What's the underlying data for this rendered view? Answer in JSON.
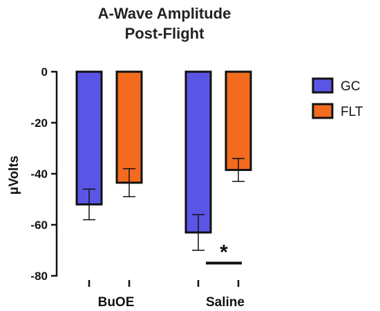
{
  "chart_data": {
    "type": "bar",
    "title": [
      "A-Wave Amplitude",
      "Post-Flight"
    ],
    "ylabel": "μVolts",
    "xlabel": "",
    "categories": [
      "BuOE",
      "Saline"
    ],
    "ylim": [
      -80,
      0
    ],
    "yticks": [
      0,
      -20,
      -40,
      -60,
      -80
    ],
    "series": [
      {
        "name": "GC",
        "color": "#5b55e6",
        "values": [
          -52,
          -63
        ],
        "errors": [
          6,
          7
        ]
      },
      {
        "name": "FLT",
        "color": "#f26b1f",
        "values": [
          -43.5,
          -38.5
        ],
        "errors": [
          5.5,
          4.5
        ]
      }
    ],
    "annotations": [
      {
        "text": "*",
        "category": "Saline",
        "y": -75
      }
    ],
    "legend": "right",
    "grid": false
  }
}
